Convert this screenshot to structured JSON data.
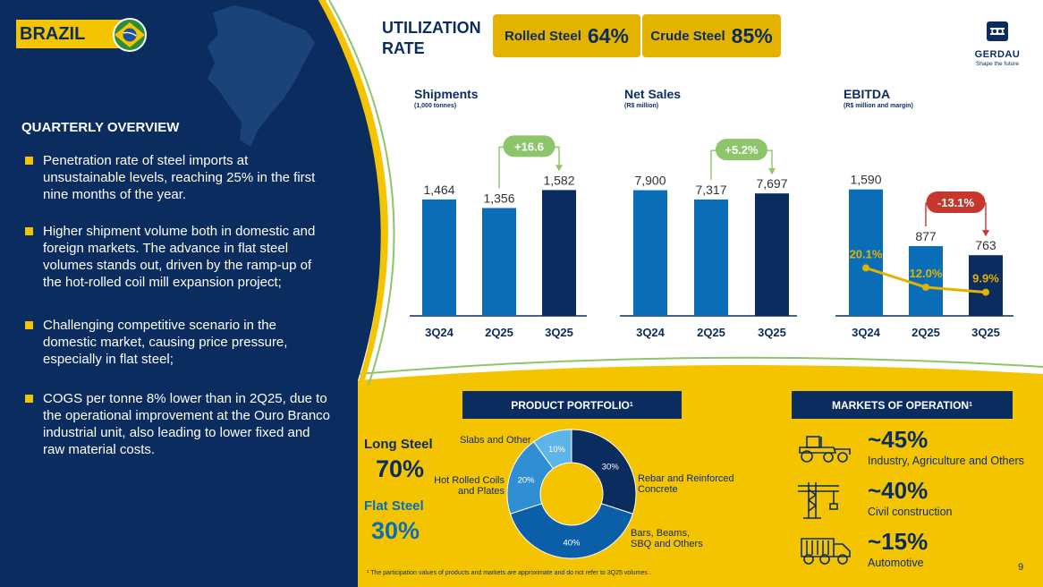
{
  "country": {
    "name": "BRAZIL"
  },
  "overview": {
    "title": "QUARTERLY OVERVIEW",
    "bullets": [
      "Penetration rate of steel imports at unsustainable levels, reaching 25% in the first nine months of the year.",
      "Higher shipment volume both in domestic and foreign markets. The advance in flat steel volumes stands out, driven by the ramp-up of the hot-rolled coil mill expansion project;",
      "Challenging competitive scenario in the domestic market, causing price pressure, especially in flat steel;",
      "COGS per tonne 8% lower than in 2Q25, due to the operational improvement at the Ouro Branco industrial unit, also leading to lower fixed and raw material costs."
    ]
  },
  "utilization": {
    "title_line1": "UTILIZATION",
    "title_line2": "RATE",
    "rolled_label": "Rolled Steel",
    "rolled_value": "64%",
    "crude_label": "Crude Steel",
    "crude_value": "85%"
  },
  "logo": {
    "name": "GERDAU",
    "tagline": "Shape the future",
    "icon": "gerdau-logo-icon"
  },
  "colors": {
    "navy": "#0b2c5f",
    "blue": "#0a6db8",
    "yellow": "#f5c400",
    "gold": "#e3b300",
    "green": "#8cc56a",
    "red": "#c8372d"
  },
  "chart_data": [
    {
      "type": "bar",
      "title": "Shipments",
      "subtitle": "(1,000 tonnes)",
      "categories": [
        "3Q24",
        "2Q25",
        "3Q25"
      ],
      "values": [
        1464,
        1356,
        1582
      ],
      "value_labels": [
        "1,464",
        "1,356",
        "1,582"
      ],
      "ylim": [
        0,
        1800
      ],
      "grid": false,
      "annotation": {
        "text": "+16.6",
        "from": "2Q25",
        "to": "3Q25",
        "color": "green"
      }
    },
    {
      "type": "bar",
      "title": "Net Sales",
      "subtitle": "(R$ million)",
      "categories": [
        "3Q24",
        "2Q25",
        "3Q25"
      ],
      "values": [
        7900,
        7317,
        7697
      ],
      "value_labels": [
        "7,900",
        "7,317",
        "7,697"
      ],
      "ylim": [
        0,
        9000
      ],
      "grid": false,
      "annotation": {
        "text": "+5.2%",
        "from": "2Q25",
        "to": "3Q25",
        "color": "green"
      }
    },
    {
      "type": "bar",
      "title": "EBITDA",
      "subtitle": "(R$ million and margin)",
      "categories": [
        "3Q24",
        "2Q25",
        "3Q25"
      ],
      "values": [
        1590,
        877,
        763
      ],
      "value_labels": [
        "1,590",
        "877",
        "763"
      ],
      "ylim": [
        0,
        1800
      ],
      "grid": false,
      "margin_series": {
        "values": [
          20.1,
          12.0,
          9.9
        ],
        "labels": [
          "20.1%",
          "12.0%",
          "9.9%"
        ]
      },
      "annotation": {
        "text": "-13.1%",
        "from": "2Q25",
        "to": "3Q25",
        "color": "red"
      }
    },
    {
      "type": "pie",
      "title": "PRODUCT PORTFOLIO",
      "slices": [
        {
          "label": "Rebar and Reinforced Concrete",
          "value": 30,
          "value_label": "30%"
        },
        {
          "label": "Bars, Beams, SBQ and Others",
          "value": 40,
          "value_label": "40%"
        },
        {
          "label": "Hot Rolled Coils and Plates",
          "value": 20,
          "value_label": "20%"
        },
        {
          "label": "Slabs and Other",
          "value": 10,
          "value_label": "10%"
        }
      ]
    }
  ],
  "portfolio": {
    "heading": "PRODUCT PORTFOLIO",
    "footnote_mark": "1",
    "long_label": "Long Steel",
    "long_value": "70%",
    "flat_label": "Flat Steel",
    "flat_value": "30%",
    "slice_labels": {
      "rebar_line1": "Rebar and Reinforced",
      "rebar_line2": "Concrete",
      "bars_line1": "Bars, Beams,",
      "bars_line2": "SBQ and Others",
      "hrc_line1": "Hot Rolled Coils",
      "hrc_line2": "and Plates",
      "slabs": "Slabs and Other"
    }
  },
  "markets": {
    "heading": "MARKETS OF OPERATION",
    "footnote_mark": "1",
    "items": [
      {
        "pct": "~45%",
        "desc": "Industry, Agriculture and Others",
        "icon": "tractor-icon"
      },
      {
        "pct": "~40%",
        "desc": "Civil construction",
        "icon": "crane-icon"
      },
      {
        "pct": "~15%",
        "desc": "Automotive",
        "icon": "truck-icon"
      }
    ]
  },
  "footnote": "¹ The participation values of products and markets are approximate and do not refer to 3Q25 volumes .",
  "page_number": "9"
}
